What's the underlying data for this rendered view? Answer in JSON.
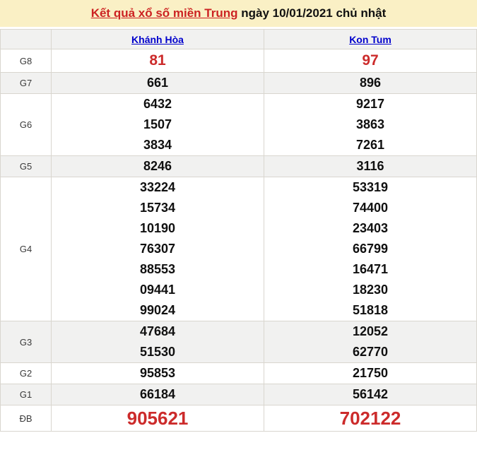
{
  "title_bar": {
    "link_text": "Kết quả xổ số miền Trung",
    "suffix_text": " ngày 10/01/2021 chủ nhật"
  },
  "table": {
    "columns": [
      {
        "label": "Khánh Hòa"
      },
      {
        "label": "Kon Tum"
      }
    ],
    "rows": [
      {
        "label": "G8",
        "style": "red-large",
        "cells": [
          [
            "81"
          ],
          [
            "97"
          ]
        ]
      },
      {
        "label": "G7",
        "style": "normal",
        "cells": [
          [
            "661"
          ],
          [
            "896"
          ]
        ]
      },
      {
        "label": "G6",
        "style": "normal",
        "cells": [
          [
            "6432",
            "1507",
            "3834"
          ],
          [
            "9217",
            "3863",
            "7261"
          ]
        ]
      },
      {
        "label": "G5",
        "style": "normal",
        "cells": [
          [
            "8246"
          ],
          [
            "3116"
          ]
        ]
      },
      {
        "label": "G4",
        "style": "normal",
        "cells": [
          [
            "33224",
            "15734",
            "10190",
            "76307",
            "88553",
            "09441",
            "99024"
          ],
          [
            "53319",
            "74400",
            "23403",
            "66799",
            "16471",
            "18230",
            "51818"
          ]
        ]
      },
      {
        "label": "G3",
        "style": "normal",
        "cells": [
          [
            "47684",
            "51530"
          ],
          [
            "12052",
            "62770"
          ]
        ]
      },
      {
        "label": "G2",
        "style": "normal",
        "cells": [
          [
            "95853"
          ],
          [
            "21750"
          ]
        ]
      },
      {
        "label": "G1",
        "style": "normal",
        "cells": [
          [
            "66184"
          ],
          [
            "56142"
          ]
        ]
      },
      {
        "label": "ĐB",
        "style": "red-xlarge",
        "cells": [
          [
            "905621"
          ],
          [
            "702122"
          ]
        ]
      }
    ]
  },
  "colors": {
    "title_band_bg": "#FAF0C5",
    "title_link_red": "#CC2222",
    "column_link_blue": "#0000CC",
    "result_red": "#CC2B2B",
    "alt_row_bg": "#F1F1F0",
    "border": "#D9D6CF"
  }
}
